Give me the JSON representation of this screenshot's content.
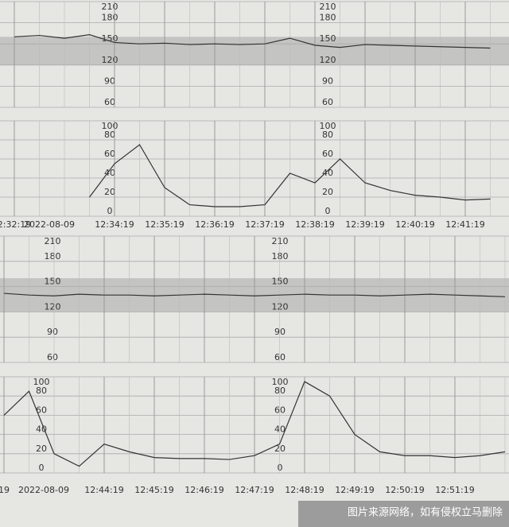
{
  "chart_data": [
    {
      "type": "line",
      "ylim": [
        60,
        210
      ],
      "yticks": [
        60,
        90,
        120,
        150,
        180,
        210
      ],
      "band": [
        120,
        160
      ],
      "color": "#333",
      "categories": [
        "2:32:19",
        null,
        null,
        null,
        "12:34:19",
        null,
        "12:35:19",
        null,
        "12:36:19",
        null,
        "12:37:19",
        null,
        "12:38:19",
        null,
        "12:39:19",
        null,
        "12:40:19",
        null,
        "12:41:19",
        null
      ],
      "values": [
        160,
        162,
        158,
        163,
        152,
        150,
        151,
        149,
        150,
        149,
        150,
        158,
        148,
        145,
        149,
        148,
        147,
        146,
        145,
        144
      ]
    },
    {
      "type": "line",
      "ylim": [
        0,
        100
      ],
      "yticks": [
        0,
        20,
        40,
        60,
        80,
        100
      ],
      "color": "#333",
      "date": "2022-08-09",
      "categories": [
        "2:32:19",
        null,
        null,
        null,
        "12:34:19",
        null,
        "12:35:19",
        null,
        "12:36:19",
        null,
        "12:37:19",
        null,
        "12:38:19",
        null,
        "12:39:19",
        null,
        "12:40:19",
        null,
        "12:41:19",
        null
      ],
      "values": [
        null,
        null,
        null,
        20,
        55,
        75,
        30,
        12,
        10,
        10,
        12,
        45,
        35,
        60,
        35,
        27,
        22,
        20,
        17,
        18
      ]
    },
    {
      "type": "line",
      "ylim": [
        60,
        210
      ],
      "yticks": [
        60,
        90,
        120,
        150,
        180,
        210
      ],
      "band": [
        120,
        160
      ],
      "color": "#333",
      "categories": [
        "19",
        null,
        null,
        null,
        "12:44:19",
        null,
        "12:45:19",
        null,
        "12:46:19",
        null,
        "12:47:19",
        null,
        "12:48:19",
        null,
        "12:49:19",
        null,
        "12:50:19",
        null,
        "12:51:19",
        null,
        null
      ],
      "values": [
        142,
        140,
        139,
        141,
        140,
        140,
        139,
        140,
        141,
        140,
        139,
        140,
        141,
        140,
        140,
        139,
        140,
        141,
        140,
        139,
        138
      ]
    },
    {
      "type": "line",
      "ylim": [
        0,
        100
      ],
      "yticks": [
        0,
        20,
        40,
        60,
        80,
        100
      ],
      "color": "#333",
      "date": "2022-08-09",
      "categories": [
        "19",
        null,
        null,
        null,
        "12:44:19",
        null,
        "12:45:19",
        null,
        "12:46:19",
        null,
        "12:47:19",
        null,
        "12:48:19",
        null,
        "12:49:19",
        null,
        "12:50:19",
        null,
        "12:51:19",
        null,
        null
      ],
      "values": [
        60,
        85,
        20,
        7,
        30,
        22,
        16,
        15,
        15,
        14,
        18,
        30,
        95,
        80,
        40,
        22,
        18,
        18,
        16,
        18,
        22
      ]
    }
  ],
  "watermark": "图片来源网络，如有侵权立马删除"
}
